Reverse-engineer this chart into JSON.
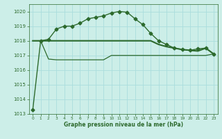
{
  "bg_color": "#cceee8",
  "grid_color": "#aadddd",
  "line_color": "#2d6a2d",
  "xlabel": "Graphe pression niveau de la mer (hPa)",
  "ylim": [
    1013,
    1020.5
  ],
  "yticks": [
    1013,
    1014,
    1015,
    1016,
    1017,
    1018,
    1019,
    1020
  ],
  "xlim": [
    -0.5,
    23.5
  ],
  "xticks": [
    0,
    1,
    2,
    3,
    4,
    5,
    6,
    7,
    8,
    9,
    10,
    11,
    12,
    13,
    14,
    15,
    16,
    17,
    18,
    19,
    20,
    21,
    22,
    23
  ],
  "series": [
    {
      "x": [
        0,
        1,
        2,
        3,
        4,
        5,
        6,
        7,
        8,
        9,
        10,
        11,
        12,
        13,
        14,
        15,
        16,
        17,
        18,
        19,
        20,
        21,
        22,
        23
      ],
      "y": [
        1013.3,
        1018.0,
        1018.1,
        1018.8,
        1019.0,
        1019.0,
        1019.2,
        1019.5,
        1019.6,
        1019.7,
        1019.9,
        1020.0,
        1019.95,
        1019.5,
        1019.1,
        1018.5,
        1018.0,
        1017.75,
        1017.5,
        1017.4,
        1017.35,
        1017.45,
        1017.5,
        1017.1
      ],
      "marker": "D",
      "markersize": 2.5,
      "linewidth": 1.0,
      "zorder": 5
    },
    {
      "x": [
        0,
        1,
        2,
        3,
        4,
        5,
        6,
        7,
        8,
        9,
        10,
        11,
        12,
        13,
        14,
        15,
        16,
        17,
        18,
        19,
        20,
        21,
        22,
        23
      ],
      "y": [
        1018.0,
        1018.0,
        1018.0,
        1018.0,
        1018.0,
        1018.0,
        1018.0,
        1018.0,
        1018.0,
        1018.0,
        1018.0,
        1018.0,
        1018.0,
        1018.0,
        1018.0,
        1018.0,
        1017.75,
        1017.6,
        1017.5,
        1017.4,
        1017.35,
        1017.3,
        1017.5,
        1017.1
      ],
      "marker": null,
      "markersize": 0,
      "linewidth": 1.5,
      "zorder": 3
    },
    {
      "x": [
        0,
        1,
        2,
        3,
        4,
        5,
        6,
        7,
        8,
        9,
        10,
        11,
        12,
        13,
        14,
        15,
        16,
        17,
        18,
        19,
        20,
        21,
        22,
        23
      ],
      "y": [
        1018.0,
        1018.0,
        1016.75,
        1016.7,
        1016.7,
        1016.7,
        1016.7,
        1016.7,
        1016.7,
        1016.7,
        1017.0,
        1017.0,
        1017.0,
        1017.0,
        1017.0,
        1017.0,
        1017.0,
        1017.0,
        1017.0,
        1017.0,
        1017.0,
        1017.0,
        1017.0,
        1017.1
      ],
      "marker": null,
      "markersize": 0,
      "linewidth": 0.9,
      "zorder": 2
    }
  ]
}
